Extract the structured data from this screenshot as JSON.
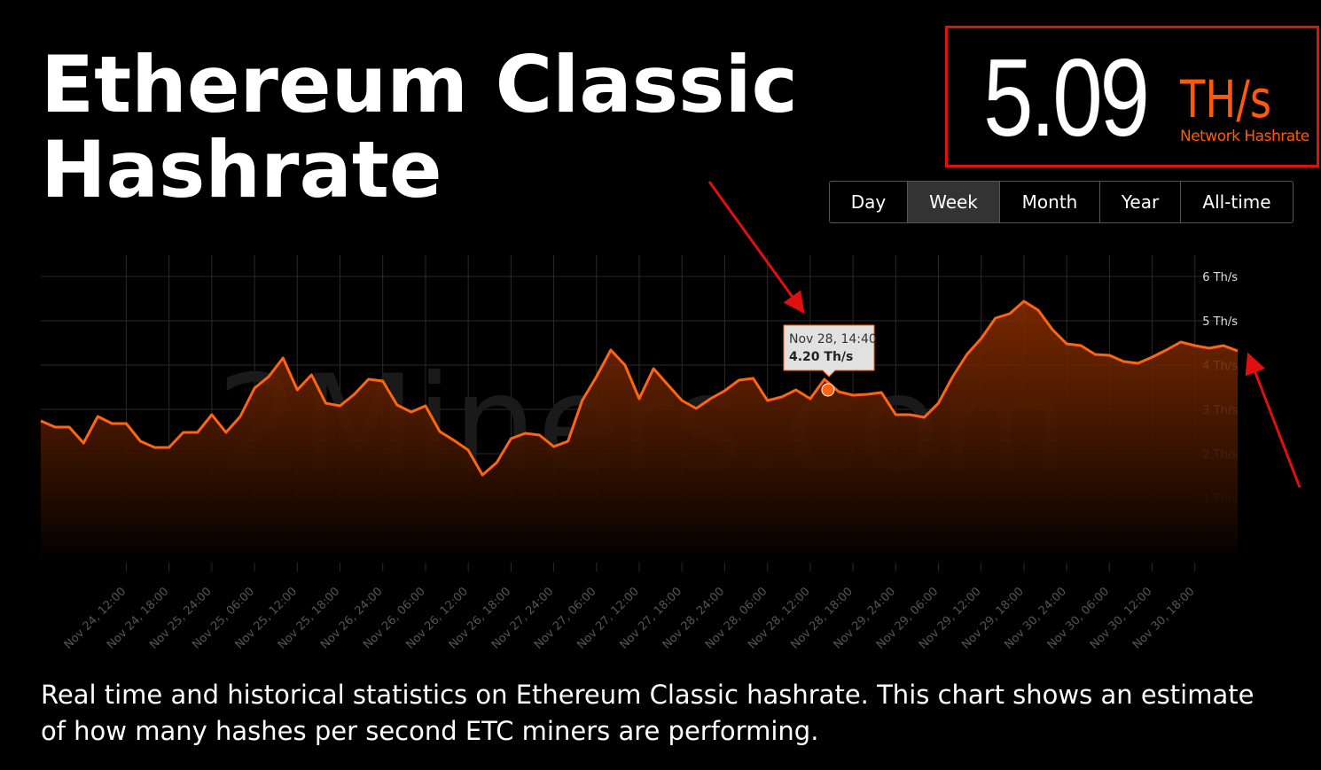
{
  "header": {
    "title": "Ethereum Classic Hashrate"
  },
  "stat": {
    "value": "5.09",
    "unit": "TH/s",
    "label": "Network Hashrate"
  },
  "tabs": {
    "items": [
      "Day",
      "Week",
      "Month",
      "Year",
      "All-time"
    ],
    "active": 1
  },
  "chart_data": {
    "type": "line",
    "watermark": "2Miners.com",
    "categories": [
      null,
      null,
      null,
      null,
      null,
      null,
      "Nov 24, 12:00",
      null,
      null,
      "Nov 24, 18:00",
      null,
      null,
      "Nov 25, 24:00",
      null,
      null,
      "Nov 25, 06:00",
      null,
      null,
      "Nov 25, 12:00",
      null,
      null,
      "Nov 25, 18:00",
      null,
      null,
      "Nov 26, 24:00",
      null,
      null,
      "Nov 26, 06:00",
      null,
      null,
      "Nov 26, 12:00",
      null,
      null,
      "Nov 26, 18:00",
      null,
      null,
      "Nov 27, 24:00",
      null,
      null,
      "Nov 27, 06:00",
      null,
      null,
      "Nov 27, 12:00",
      null,
      null,
      "Nov 27, 18:00",
      null,
      null,
      "Nov 28, 24:00",
      null,
      null,
      "Nov 28, 06:00",
      null,
      null,
      "Nov 28, 12:00",
      null,
      null,
      "Nov 28, 18:00",
      null,
      null,
      "Nov 29, 24:00",
      null,
      null,
      "Nov 29, 06:00",
      null,
      null,
      "Nov 29, 12:00",
      null,
      null,
      "Nov 29, 18:00",
      null,
      null,
      "Nov 30, 24:00",
      null,
      null,
      "Nov 30, 06:00",
      null,
      null,
      "Nov 30, 12:00",
      null,
      null,
      "Nov 30, 18:00",
      null,
      null,
      null
    ],
    "series": [
      {
        "name": "Hashrate",
        "color": "#ff6410",
        "values": [
          2.74,
          2.6,
          2.6,
          2.24,
          2.84,
          2.68,
          2.68,
          2.28,
          2.14,
          2.14,
          2.48,
          2.48,
          2.88,
          2.48,
          2.84,
          3.48,
          3.74,
          4.16,
          3.44,
          3.78,
          3.14,
          3.08,
          3.34,
          3.68,
          3.64,
          3.1,
          2.94,
          3.08,
          2.5,
          2.3,
          2.08,
          1.52,
          1.8,
          2.34,
          2.46,
          2.42,
          2.16,
          2.28,
          3.2,
          3.74,
          4.34,
          4.0,
          3.24,
          3.92,
          3.56,
          3.2,
          3.02,
          3.24,
          3.42,
          3.66,
          3.7,
          3.2,
          3.28,
          3.44,
          3.24,
          3.68,
          3.4,
          3.32,
          3.34,
          3.38,
          2.88,
          2.88,
          2.82,
          3.14,
          3.74,
          4.24,
          4.6,
          5.06,
          5.16,
          5.44,
          5.24,
          4.8,
          4.48,
          4.44,
          4.24,
          4.22,
          4.08,
          4.04,
          4.18,
          4.34,
          4.52,
          4.44,
          4.38,
          4.44,
          4.32
        ]
      }
    ],
    "ylim": [
      -0.46,
      6.48
    ],
    "yticks": [
      {
        "value": 1,
        "label": "1 Th/s"
      },
      {
        "value": 2,
        "label": "2 Th/s"
      },
      {
        "value": 3,
        "label": "3 Th/s"
      },
      {
        "value": 4,
        "label": "4 Th/s"
      },
      {
        "value": 5,
        "label": "5 Th/s"
      },
      {
        "value": 6,
        "label": "6 Th/s"
      }
    ],
    "grid": true,
    "tooltip": {
      "date": "Nov 28, 14:40",
      "value_label": "4.20 Th/s"
    }
  },
  "description": "Real time and historical statistics on Ethereum Classic hashrate. This chart shows an estimate of how many hashes per second ETC miners are performing."
}
